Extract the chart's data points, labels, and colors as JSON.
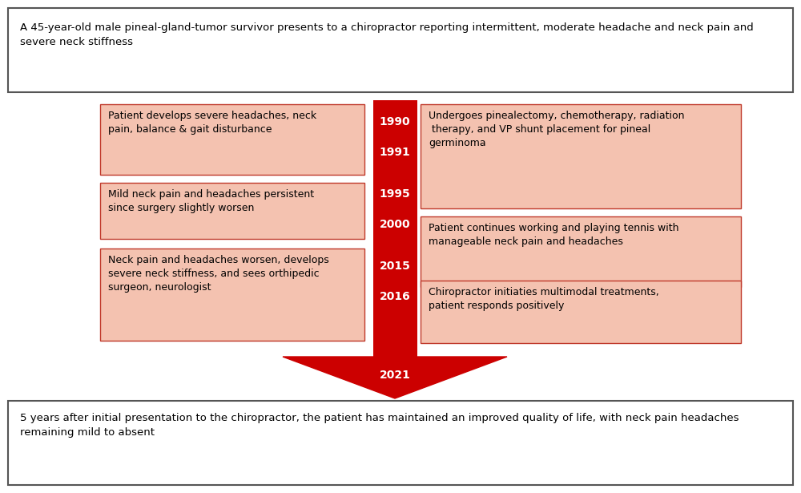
{
  "title_box_text": "A 45-year-old male pineal-gland-tumor survivor presents to a chiropractor reporting intermittent, moderate headache and neck pain and\nsevere neck stiffness",
  "bottom_box_text": "5 years after initial presentation to the chiropractor, the patient has maintained an improved quality of life, with neck pain headaches\nremaining mild to absent",
  "years": [
    "1990",
    "1991",
    "1995",
    "2000",
    "2015",
    "2016"
  ],
  "arrow_year": "2021",
  "left_boxes": [
    {
      "text": "Patient develops severe headaches, neck\npain, balance & gait disturbance"
    },
    {
      "text": "Mild neck pain and headaches persistent\nsince surgery slightly worsen"
    },
    {
      "text": "Neck pain and headaches worsen, develops\nsevere neck stiffness, and sees orthipedic\nsurgeon, neurologist"
    }
  ],
  "right_boxes": [
    {
      "text": "Undergoes pinealectomy, chemotherapy, radiation\n therapy, and VP shunt placement for pineal\ngerminoma"
    },
    {
      "text": "Patient continues working and playing tennis with\nmanageable neck pain and headaches"
    },
    {
      "text": "Chiropractor initiaties multimodal treatments,\npatient responds positively"
    }
  ],
  "box_fill_color": "#F4C2B0",
  "box_edge_color": "#C0392B",
  "arrow_color": "#CC0000",
  "year_text_color": "#FFFFFF",
  "background_color": "#FFFFFF",
  "border_color": "#555555",
  "text_color": "#000000",
  "font_size_main": 9.5,
  "font_size_year": 10,
  "font_size_box": 9.0
}
